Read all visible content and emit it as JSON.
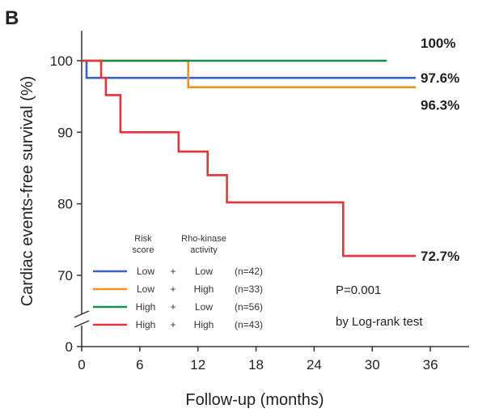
{
  "chart_data": {
    "type": "line",
    "panel_label": "B",
    "ylabel": "Cardiac events-free survival (%)",
    "xlabel": "Follow-up (months)",
    "xlim": [
      0,
      40
    ],
    "xticks": [
      0,
      6,
      12,
      18,
      24,
      30,
      36
    ],
    "ylim": [
      66,
      104
    ],
    "yticks": [
      0,
      70,
      80,
      90,
      100
    ],
    "axis_break": true,
    "grid": false,
    "legend": {
      "placement": "bottom-left",
      "header_left": [
        "Risk",
        "score"
      ],
      "header_right": [
        "Rho-kinase",
        "activity"
      ],
      "rows": [
        {
          "risk": "Low",
          "op": "+",
          "rho": "Low",
          "n": "(n=42)",
          "color": "#3a5fc8"
        },
        {
          "risk": "Low",
          "op": "+",
          "rho": "High",
          "n": "(n=33)",
          "color": "#f0921e"
        },
        {
          "risk": "High",
          "op": "+",
          "rho": "Low",
          "n": "(n=56)",
          "color": "#1e8a4a"
        },
        {
          "risk": "High",
          "op": "+",
          "rho": "High",
          "n": "(n=43)",
          "color": "#e8333a"
        }
      ]
    },
    "stats": {
      "p_value": "P=0.001",
      "test": "by Log-rank test"
    },
    "series": [
      {
        "color": "#3a5fc8",
        "end_label": "97.6%",
        "x": [
          0,
          0.5,
          0.5,
          34.5
        ],
        "y": [
          100,
          100,
          97.6,
          97.6
        ]
      },
      {
        "color": "#f0921e",
        "end_label": "96.3%",
        "x": [
          0,
          11,
          11,
          34.5
        ],
        "y": [
          100,
          100,
          96.3,
          96.3
        ]
      },
      {
        "color": "#1e8a4a",
        "end_label": "100%",
        "x": [
          0,
          31.5
        ],
        "y": [
          100,
          100
        ]
      },
      {
        "color": "#e8333a",
        "end_label": "72.7%",
        "x": [
          0,
          2,
          2,
          2.5,
          2.5,
          4,
          4,
          10,
          10,
          13,
          13,
          15,
          15,
          27,
          27,
          34.5
        ],
        "y": [
          100,
          100,
          97.6,
          97.6,
          95.2,
          95.2,
          90,
          90,
          87.3,
          87.3,
          84,
          84,
          80.2,
          80.2,
          72.7,
          72.7
        ]
      }
    ]
  }
}
